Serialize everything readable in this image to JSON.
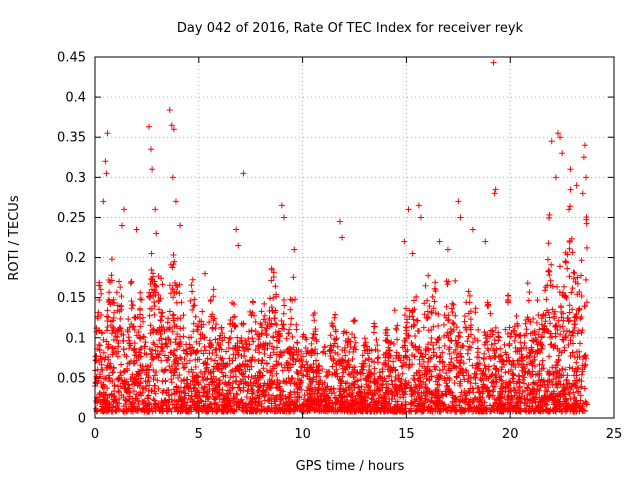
{
  "chart_data": {
    "type": "scatter",
    "title": "Day 042 of 2016, Rate Of TEC Index for receiver reyk",
    "xlabel": "GPS time / hours",
    "ylabel": "ROTI / TECUs",
    "xlim": [
      0,
      25
    ],
    "ylim": [
      0,
      0.45
    ],
    "x_ticks": [
      "0",
      "5",
      "10",
      "15",
      "20",
      "25"
    ],
    "y_ticks": [
      "0",
      "0.05",
      "0.1",
      "0.15",
      "0.2",
      "0.25",
      "0.3",
      "0.35",
      "0.4",
      "0.45"
    ],
    "grid": true,
    "marker": "+",
    "series_color": "#ff0000",
    "envelope": {
      "x": [
        0,
        0.5,
        1,
        1.5,
        2,
        2.5,
        3,
        3.5,
        4,
        4.5,
        5,
        5.5,
        6,
        6.5,
        7,
        7.5,
        8,
        8.5,
        9,
        9.5,
        10,
        10.5,
        11,
        11.5,
        12,
        12.5,
        13,
        13.5,
        14,
        14.5,
        15,
        15.5,
        16,
        16.5,
        17,
        17.5,
        18,
        18.5,
        19,
        19.5,
        20,
        20.5,
        21,
        21.5,
        22,
        22.5,
        23,
        23.5,
        23.7
      ],
      "typical_max": [
        0.15,
        0.2,
        0.17,
        0.16,
        0.15,
        0.18,
        0.2,
        0.19,
        0.2,
        0.14,
        0.15,
        0.14,
        0.13,
        0.12,
        0.13,
        0.15,
        0.16,
        0.17,
        0.17,
        0.15,
        0.12,
        0.11,
        0.1,
        0.12,
        0.12,
        0.1,
        0.1,
        0.1,
        0.11,
        0.12,
        0.14,
        0.16,
        0.17,
        0.16,
        0.16,
        0.17,
        0.15,
        0.14,
        0.13,
        0.12,
        0.13,
        0.14,
        0.14,
        0.2,
        0.22,
        0.24,
        0.26,
        0.28,
        0.27
      ]
    },
    "outliers": [
      {
        "x": 0.4,
        "y": 0.27
      },
      {
        "x": 0.5,
        "y": 0.32
      },
      {
        "x": 0.6,
        "y": 0.355
      },
      {
        "x": 0.55,
        "y": 0.305
      },
      {
        "x": 1.4,
        "y": 0.26
      },
      {
        "x": 1.3,
        "y": 0.24
      },
      {
        "x": 2.0,
        "y": 0.235
      },
      {
        "x": 2.6,
        "y": 0.363
      },
      {
        "x": 2.7,
        "y": 0.335
      },
      {
        "x": 2.75,
        "y": 0.31
      },
      {
        "x": 2.9,
        "y": 0.26
      },
      {
        "x": 2.95,
        "y": 0.23
      },
      {
        "x": 3.6,
        "y": 0.384
      },
      {
        "x": 3.7,
        "y": 0.365
      },
      {
        "x": 3.8,
        "y": 0.36
      },
      {
        "x": 3.75,
        "y": 0.3
      },
      {
        "x": 3.9,
        "y": 0.27
      },
      {
        "x": 4.1,
        "y": 0.24
      },
      {
        "x": 5.3,
        "y": 0.18
      },
      {
        "x": 6.8,
        "y": 0.235
      },
      {
        "x": 6.9,
        "y": 0.215
      },
      {
        "x": 7.15,
        "y": 0.305
      },
      {
        "x": 9.0,
        "y": 0.265
      },
      {
        "x": 9.1,
        "y": 0.25
      },
      {
        "x": 9.6,
        "y": 0.21
      },
      {
        "x": 11.8,
        "y": 0.245
      },
      {
        "x": 11.9,
        "y": 0.225
      },
      {
        "x": 14.9,
        "y": 0.22
      },
      {
        "x": 15.1,
        "y": 0.26
      },
      {
        "x": 15.3,
        "y": 0.205
      },
      {
        "x": 15.6,
        "y": 0.265
      },
      {
        "x": 15.7,
        "y": 0.25
      },
      {
        "x": 16.6,
        "y": 0.22
      },
      {
        "x": 17.0,
        "y": 0.21
      },
      {
        "x": 17.5,
        "y": 0.27
      },
      {
        "x": 17.6,
        "y": 0.25
      },
      {
        "x": 18.2,
        "y": 0.235
      },
      {
        "x": 18.8,
        "y": 0.22
      },
      {
        "x": 19.2,
        "y": 0.443
      },
      {
        "x": 19.3,
        "y": 0.285
      },
      {
        "x": 19.25,
        "y": 0.28
      },
      {
        "x": 22.0,
        "y": 0.345
      },
      {
        "x": 22.3,
        "y": 0.355
      },
      {
        "x": 22.4,
        "y": 0.35
      },
      {
        "x": 22.5,
        "y": 0.33
      },
      {
        "x": 22.2,
        "y": 0.3
      },
      {
        "x": 22.9,
        "y": 0.31
      },
      {
        "x": 23.2,
        "y": 0.29
      },
      {
        "x": 23.5,
        "y": 0.28
      },
      {
        "x": 23.6,
        "y": 0.34
      },
      {
        "x": 23.55,
        "y": 0.325
      },
      {
        "x": 23.65,
        "y": 0.3
      }
    ]
  }
}
